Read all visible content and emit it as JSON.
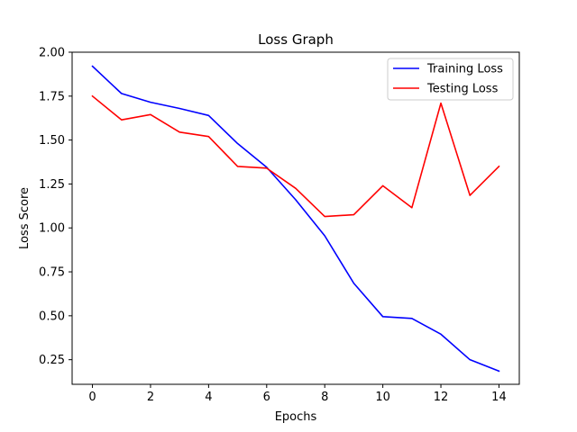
{
  "chart_data": {
    "type": "line",
    "title": "Loss Graph",
    "xlabel": "Epochs",
    "ylabel": "Loss Score",
    "x": [
      0,
      1,
      2,
      3,
      4,
      5,
      6,
      7,
      8,
      9,
      10,
      11,
      12,
      13,
      14
    ],
    "xlim": [
      -0.7,
      14.7
    ],
    "ylim": [
      0.11,
      2.0
    ],
    "xticks": [
      0,
      2,
      4,
      6,
      8,
      10,
      12,
      14
    ],
    "yticks": [
      0.25,
      0.5,
      0.75,
      1.0,
      1.25,
      1.5,
      1.75,
      2.0
    ],
    "xtick_labels": [
      "0",
      "2",
      "4",
      "6",
      "8",
      "10",
      "12",
      "14"
    ],
    "ytick_labels": [
      "0.25",
      "0.50",
      "0.75",
      "1.00",
      "1.25",
      "1.50",
      "1.75",
      "2.00"
    ],
    "grid": false,
    "legend_position": "top-right",
    "series": [
      {
        "name": "Training Loss",
        "color": "#0000ff",
        "values": [
          1.92,
          1.765,
          1.715,
          1.68,
          1.64,
          1.48,
          1.345,
          1.16,
          0.955,
          0.685,
          0.495,
          0.485,
          0.395,
          0.25,
          0.185
        ]
      },
      {
        "name": "Testing Loss",
        "color": "#ff0000",
        "values": [
          1.75,
          1.615,
          1.645,
          1.545,
          1.52,
          1.35,
          1.34,
          1.225,
          1.065,
          1.075,
          1.24,
          1.115,
          1.71,
          1.185,
          1.35
        ]
      }
    ]
  }
}
